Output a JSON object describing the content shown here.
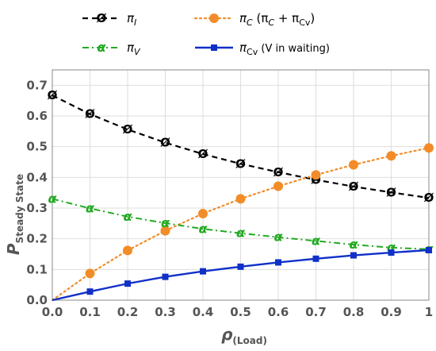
{
  "chart_data": {
    "type": "line",
    "xlabel": {
      "main": "ρ",
      "sub": "(Load)"
    },
    "ylabel": {
      "main": "P",
      "sub": "Steady State"
    },
    "xlim": [
      0,
      1
    ],
    "ylim": [
      0,
      0.75
    ],
    "x_ticks": [
      "0.0",
      "0.1",
      "0.2",
      "0.3",
      "0.4",
      "0.5",
      "0.6",
      "0.7",
      "0.8",
      "0.9",
      "1"
    ],
    "y_ticks": [
      "0.0",
      "0.1",
      "0.2",
      "0.3",
      "0.4",
      "0.5",
      "0.6",
      "0.7"
    ],
    "grid": true,
    "legend_position": "top",
    "x": [
      0,
      0.1,
      0.2,
      0.3,
      0.4,
      0.5,
      0.6,
      0.7,
      0.8,
      0.9,
      1.0
    ],
    "series": [
      {
        "key": "pi_I",
        "legend": {
          "main": "π",
          "sub": "I",
          "sub_italic": true,
          "extra": ""
        },
        "marker_glyph": "Ø",
        "color": "#000000",
        "line_style": "dashed",
        "marker": "slashed-circle",
        "values": [
          0.667,
          0.606,
          0.556,
          0.513,
          0.476,
          0.444,
          0.417,
          0.392,
          0.37,
          0.351,
          0.333
        ]
      },
      {
        "key": "pi_C",
        "legend": {
          "main": "π",
          "sub": "C",
          "sub_italic": true,
          "extra": " (π",
          "extra_sub": "C",
          "extra_tail": " + π",
          "extra_sub2": "Cv",
          "extra_end": ")"
        },
        "color": "#f28c28",
        "line_style": "dotted",
        "marker": "circle",
        "values": [
          0.0,
          0.087,
          0.162,
          0.226,
          0.282,
          0.33,
          0.371,
          0.408,
          0.441,
          0.47,
          0.496
        ]
      },
      {
        "key": "pi_V",
        "legend": {
          "main": "π",
          "sub": "V",
          "sub_italic": true,
          "extra": ""
        },
        "marker_glyph": "α",
        "color": "#22aa22",
        "line_style": "dashdot",
        "marker": "alpha",
        "values": [
          0.33,
          0.299,
          0.272,
          0.251,
          0.232,
          0.218,
          0.205,
          0.193,
          0.181,
          0.171,
          0.166
        ]
      },
      {
        "key": "pi_Cv",
        "legend": {
          "main": "π",
          "sub": "Cv",
          "sub_italic": false,
          "extra": " (V in waiting)"
        },
        "color": "#1030c8",
        "line_style": "solid",
        "marker": "square",
        "values": [
          0.0,
          0.028,
          0.054,
          0.076,
          0.094,
          0.109,
          0.123,
          0.135,
          0.146,
          0.155,
          0.163
        ]
      }
    ]
  }
}
